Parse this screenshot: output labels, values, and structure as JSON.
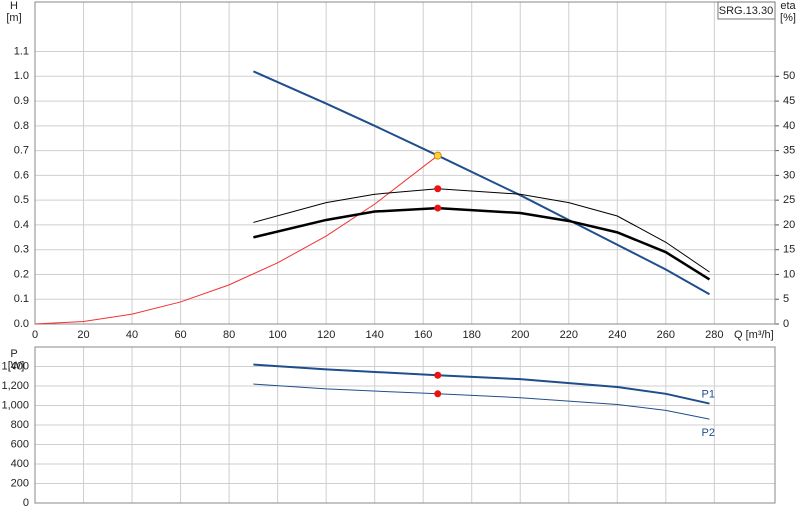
{
  "chart_data": [
    {
      "type": "line",
      "title": "SRG.13.30",
      "y_label": "H",
      "y_unit": "[m]",
      "y2_label": "eta",
      "y2_unit": "[%]",
      "x_label": "Q [m³/h]",
      "xlim": [
        0,
        305
      ],
      "xticks": [
        0,
        20,
        40,
        60,
        80,
        100,
        120,
        140,
        160,
        180,
        200,
        220,
        240,
        260,
        280
      ],
      "ylim": [
        0,
        1.3
      ],
      "yticks": [
        {
          "value": 0,
          "label": "0.0"
        },
        0.1,
        0.2,
        0.3,
        0.4,
        0.5,
        0.6,
        0.7,
        0.8,
        0.9,
        {
          "value": 1,
          "label": "1.0"
        },
        1.1
      ],
      "y2lim": [
        0,
        65
      ],
      "y2ticks": [
        0,
        5,
        10,
        15,
        20,
        25,
        30,
        35,
        40,
        45,
        50
      ],
      "grid": true,
      "series": [
        {
          "color": "#1f4e8c",
          "width": 2,
          "x": [
            90,
            120,
            140,
            166,
            200,
            220,
            240,
            260,
            278
          ],
          "values": [
            1.02,
            0.89,
            0.8,
            0.68,
            0.52,
            0.42,
            0.32,
            0.22,
            0.12
          ]
        },
        {
          "color": "#ee3333",
          "width": 1,
          "x": [
            0,
            20,
            40,
            60,
            80,
            100,
            120,
            140,
            166
          ],
          "values": [
            0,
            0.01,
            0.04,
            0.089,
            0.158,
            0.247,
            0.355,
            0.484,
            0.68
          ]
        },
        {
          "color": "#000000",
          "width": 1,
          "axis": "y2",
          "x": [
            90,
            120,
            140,
            166,
            200,
            220,
            240,
            260,
            278
          ],
          "values": [
            20.5,
            24.5,
            26.2,
            27.3,
            26.2,
            24.5,
            21.8,
            16.5,
            10.5
          ]
        },
        {
          "color": "#000000",
          "width": 2.5,
          "axis": "y2",
          "x": [
            90,
            120,
            140,
            166,
            200,
            220,
            240,
            260,
            278
          ],
          "values": [
            17.5,
            21,
            22.7,
            23.4,
            22.4,
            20.8,
            18.5,
            14.5,
            9
          ]
        }
      ],
      "points": [
        {
          "x": 166,
          "y": 0.68,
          "color": "#ffd23f"
        },
        {
          "x": 166,
          "y": 27.3,
          "axis": "y2",
          "color": "#ee1111"
        },
        {
          "x": 166,
          "y": 23.4,
          "axis": "y2",
          "color": "#ee1111"
        }
      ]
    },
    {
      "type": "line",
      "y_label": "P",
      "y_unit": "[W]",
      "xlim": [
        0,
        305
      ],
      "xticks": [
        0,
        20,
        40,
        60,
        80,
        100,
        120,
        140,
        160,
        180,
        200,
        220,
        240,
        260,
        280
      ],
      "xtick_labels": false,
      "ylim": [
        0,
        1600
      ],
      "yticks": [
        0,
        200,
        400,
        600,
        800,
        {
          "value": 1000,
          "label": "1,000"
        },
        {
          "value": 1200,
          "label": "1,200"
        },
        {
          "value": 1400,
          "label": "1,400"
        }
      ],
      "grid": true,
      "series": [
        {
          "name": "P1",
          "color": "#1f4e8c",
          "width": 2,
          "x": [
            90,
            120,
            166,
            200,
            240,
            260,
            278
          ],
          "values": [
            1420,
            1370,
            1310,
            1270,
            1190,
            1120,
            1020
          ]
        },
        {
          "name": "P2",
          "color": "#1f4e8c",
          "width": 1,
          "x": [
            90,
            120,
            166,
            200,
            240,
            260,
            278
          ],
          "values": [
            1220,
            1170,
            1120,
            1080,
            1010,
            950,
            860
          ]
        }
      ],
      "points": [
        {
          "x": 166,
          "y": 1310,
          "color": "#ee1111"
        },
        {
          "x": 166,
          "y": 1120,
          "color": "#ee1111"
        }
      ]
    }
  ]
}
